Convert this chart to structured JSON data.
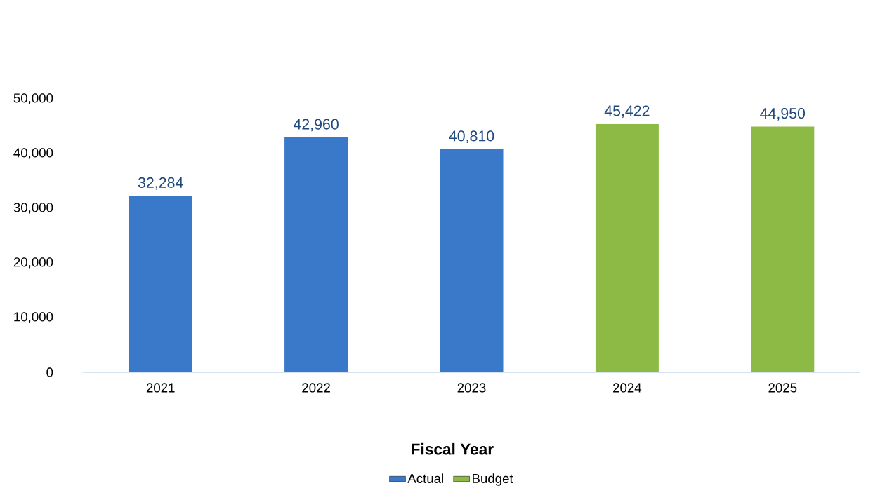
{
  "chart_data": {
    "type": "bar",
    "xlabel": "Fiscal Year",
    "categories": [
      "2021",
      "2022",
      "2023",
      "2024",
      "2025"
    ],
    "series": [
      {
        "name": "Actual",
        "color": "#3a78c9",
        "values": [
          32284,
          42960,
          40810,
          null,
          null
        ],
        "value_labels": [
          "32,284",
          "42,960",
          "40,810",
          null,
          null
        ]
      },
      {
        "name": "Budget",
        "color": "#8dba45",
        "values": [
          null,
          null,
          null,
          45422,
          44950
        ],
        "value_labels": [
          null,
          null,
          null,
          "45,422",
          "44,950"
        ]
      }
    ],
    "ylim": [
      0,
      50000
    ],
    "yticks": [
      0,
      {
        "value": 10000,
        "label": "10,000"
      },
      {
        "value": 20000,
        "label": "20,000"
      },
      {
        "value": 30000,
        "label": "30,000"
      },
      {
        "value": 40000,
        "label": "40,000"
      },
      {
        "value": 50000,
        "label": "50,000"
      }
    ],
    "grid": false,
    "legend": "bottom"
  }
}
